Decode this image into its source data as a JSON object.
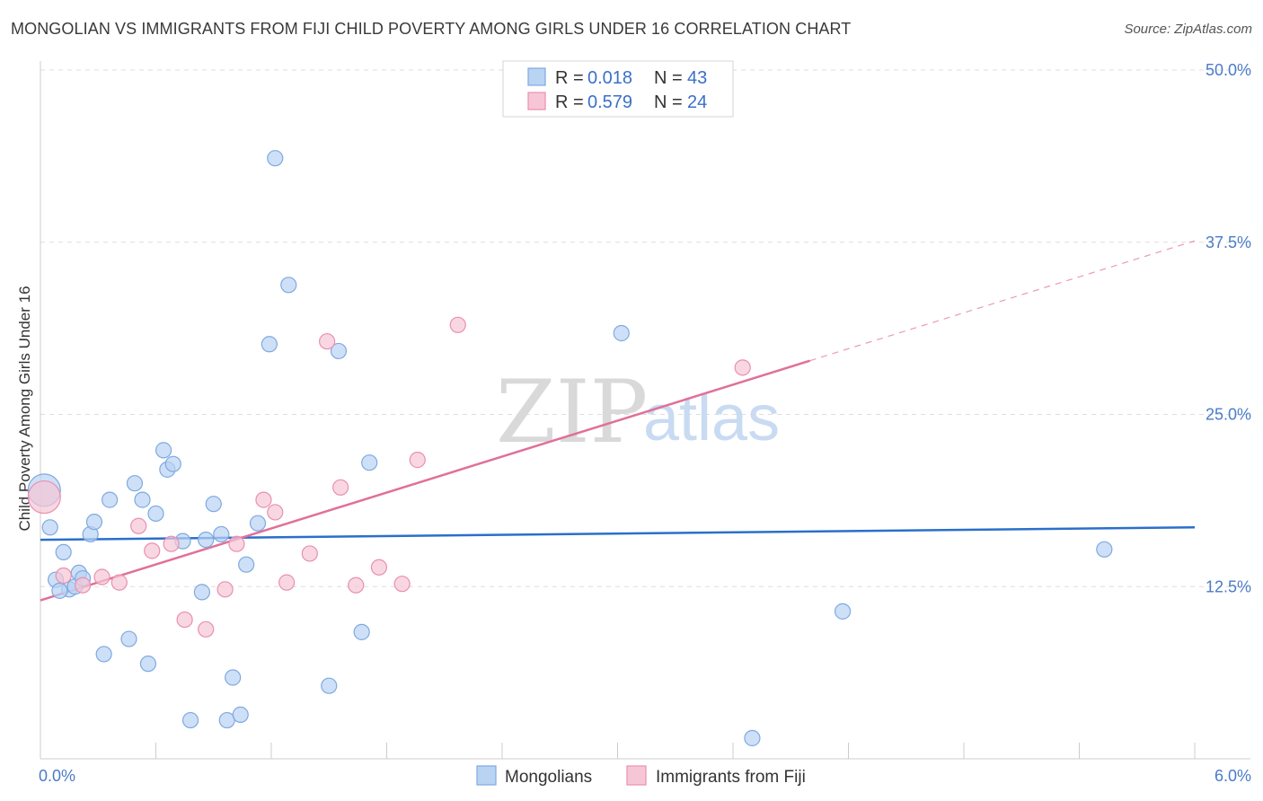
{
  "header": {
    "title": "MONGOLIAN VS IMMIGRANTS FROM FIJI CHILD POVERTY AMONG GIRLS UNDER 16 CORRELATION CHART",
    "source": "Source: ZipAtlas.com"
  },
  "watermark": {
    "zip": "ZIP",
    "atlas": "atlas"
  },
  "colors": {
    "mongolians_fill": "#b9d3f3",
    "mongolians_stroke": "#7fa9e0",
    "mongolians_line": "#2a6fcb",
    "fiji_fill": "#f7c6d6",
    "fiji_stroke": "#e890ae",
    "fiji_line": "#e0709a",
    "grid": "#dedede",
    "axis_label": "#4a7cc7"
  },
  "stats_legend": [
    {
      "r_label": "R =",
      "r_value": "0.018",
      "n_label": "N =",
      "n_value": "43"
    },
    {
      "r_label": "R =",
      "r_value": "0.579",
      "n_label": "N =",
      "n_value": "24"
    }
  ],
  "chart_data": {
    "type": "scatter",
    "title": "MONGOLIAN VS IMMIGRANTS FROM FIJI CHILD POVERTY AMONG GIRLS UNDER 16 CORRELATION CHART",
    "xlabel": "",
    "ylabel": "Child Poverty Among Girls Under 16",
    "xlim": [
      0,
      6
    ],
    "ylim": [
      0,
      50
    ],
    "x_tick_labels": [
      "0.0%",
      "6.0%"
    ],
    "y_ticks": [
      12.5,
      25.0,
      37.5,
      50.0
    ],
    "y_tick_labels": [
      "12.5%",
      "25.0%",
      "37.5%",
      "50.0%"
    ],
    "grid": true,
    "legend_position": "top-center",
    "series": [
      {
        "name": "Mongolians",
        "points": [
          [
            0.02,
            19.5
          ],
          [
            0.05,
            16.8
          ],
          [
            0.12,
            15.0
          ],
          [
            0.08,
            13.0
          ],
          [
            0.15,
            12.3
          ],
          [
            0.18,
            12.5
          ],
          [
            0.2,
            13.5
          ],
          [
            0.22,
            13.1
          ],
          [
            0.26,
            16.3
          ],
          [
            0.28,
            17.2
          ],
          [
            0.33,
            7.6
          ],
          [
            0.36,
            18.8
          ],
          [
            0.46,
            8.7
          ],
          [
            0.49,
            20.0
          ],
          [
            0.53,
            18.8
          ],
          [
            0.56,
            6.9
          ],
          [
            0.6,
            17.8
          ],
          [
            0.64,
            22.4
          ],
          [
            0.66,
            21.0
          ],
          [
            0.69,
            21.4
          ],
          [
            0.74,
            15.8
          ],
          [
            0.78,
            2.8
          ],
          [
            0.84,
            12.1
          ],
          [
            0.86,
            15.9
          ],
          [
            0.9,
            18.5
          ],
          [
            0.94,
            16.3
          ],
          [
            0.97,
            2.8
          ],
          [
            1.0,
            5.9
          ],
          [
            1.04,
            3.2
          ],
          [
            1.07,
            14.1
          ],
          [
            1.13,
            17.1
          ],
          [
            1.19,
            30.1
          ],
          [
            1.22,
            43.6
          ],
          [
            1.29,
            34.4
          ],
          [
            1.5,
            5.3
          ],
          [
            1.55,
            29.6
          ],
          [
            1.67,
            9.2
          ],
          [
            1.71,
            21.5
          ],
          [
            3.02,
            30.9
          ],
          [
            3.7,
            1.5
          ],
          [
            4.17,
            10.7
          ],
          [
            5.53,
            15.2
          ],
          [
            0.1,
            12.2
          ]
        ],
        "trend": {
          "x": [
            0,
            6
          ],
          "y": [
            15.9,
            16.8
          ]
        }
      },
      {
        "name": "Immigrants from Fiji",
        "points": [
          [
            0.02,
            19.0
          ],
          [
            0.12,
            13.3
          ],
          [
            0.22,
            12.6
          ],
          [
            0.32,
            13.2
          ],
          [
            0.41,
            12.8
          ],
          [
            0.51,
            16.9
          ],
          [
            0.58,
            15.1
          ],
          [
            0.68,
            15.6
          ],
          [
            0.75,
            10.1
          ],
          [
            0.86,
            9.4
          ],
          [
            0.96,
            12.3
          ],
          [
            1.02,
            15.6
          ],
          [
            1.16,
            18.8
          ],
          [
            1.22,
            17.9
          ],
          [
            1.28,
            12.8
          ],
          [
            1.4,
            14.9
          ],
          [
            1.49,
            30.3
          ],
          [
            1.56,
            19.7
          ],
          [
            1.64,
            12.6
          ],
          [
            1.76,
            13.9
          ],
          [
            1.88,
            12.7
          ],
          [
            1.96,
            21.7
          ],
          [
            2.17,
            31.5
          ],
          [
            3.65,
            28.4
          ]
        ],
        "trend": {
          "x": [
            0,
            4.0
          ],
          "y": [
            11.5,
            28.9
          ]
        },
        "trend_extension": {
          "x": [
            4.0,
            6.0
          ],
          "y": [
            28.9,
            37.6
          ]
        }
      }
    ]
  },
  "bottom_legend": [
    {
      "label": "Mongolians"
    },
    {
      "label": "Immigrants from Fiji"
    }
  ]
}
